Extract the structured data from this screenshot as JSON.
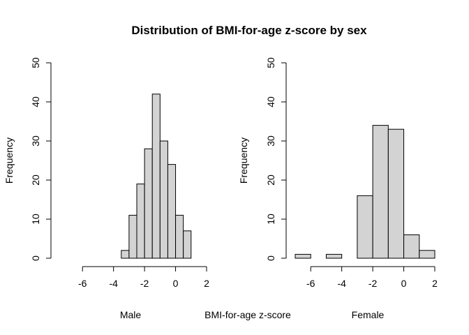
{
  "title": "Distribution of BMI-for-age z-score by sex",
  "shared_xlabel": "BMI-for-age z-score",
  "chart_data": [
    {
      "type": "bar",
      "subtitle": "Male",
      "ylabel": "Frequency",
      "xlim": [
        -7,
        2
      ],
      "ylim": [
        0,
        50
      ],
      "x_ticks": [
        -6,
        -4,
        -2,
        0,
        2
      ],
      "y_ticks": [
        0,
        10,
        20,
        30,
        40,
        50
      ],
      "bin_edges": [
        -3.5,
        -3,
        -2.5,
        -2,
        -1.5,
        -1,
        -0.5,
        0,
        0.5,
        1
      ],
      "values": [
        2,
        11,
        19,
        28,
        42,
        30,
        24,
        11,
        7
      ]
    },
    {
      "type": "bar",
      "subtitle": "Female",
      "ylabel": "Frequency",
      "xlim": [
        -7,
        2
      ],
      "ylim": [
        0,
        50
      ],
      "x_ticks": [
        -6,
        -4,
        -2,
        0,
        2
      ],
      "y_ticks": [
        0,
        10,
        20,
        30,
        40,
        50
      ],
      "bin_edges": [
        -7,
        -6,
        -5,
        -4,
        -3,
        -2,
        -1,
        0,
        1,
        2
      ],
      "values": [
        1,
        0,
        1,
        0,
        16,
        34,
        33,
        6,
        2
      ]
    }
  ]
}
